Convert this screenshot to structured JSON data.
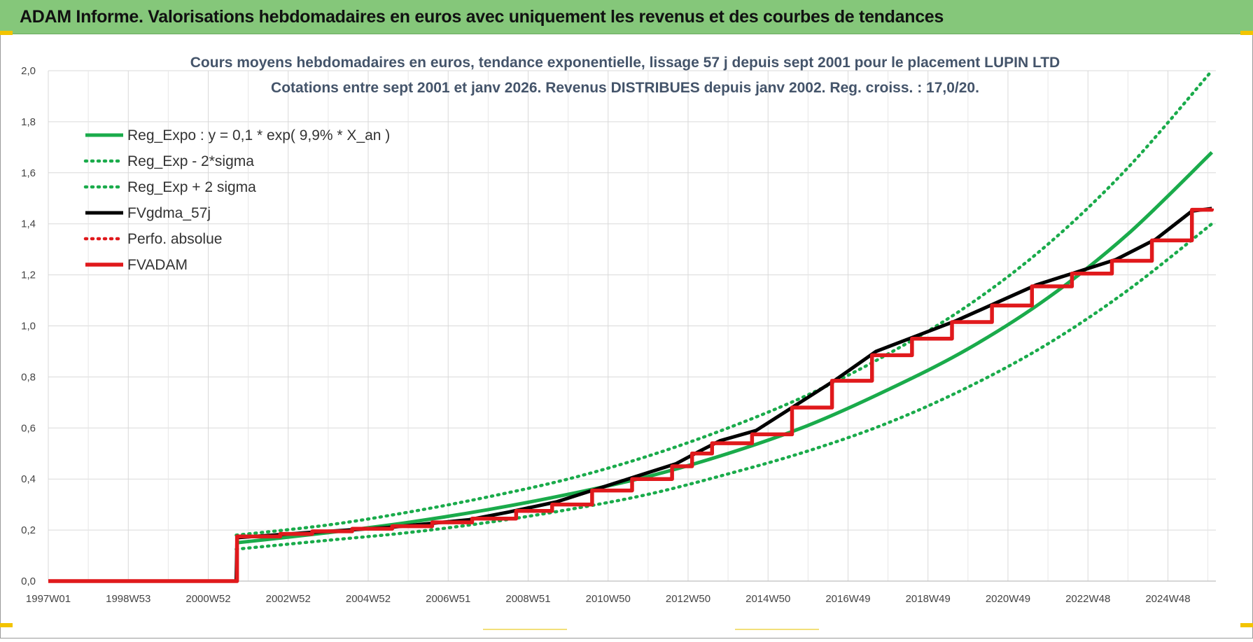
{
  "banner": {
    "title": "ADAM Informe. Valorisations hebdomadaires en euros avec uniquement les revenus et des courbes de tendances",
    "color": "#85c77a"
  },
  "chart_data": {
    "type": "line",
    "title": [
      "Cours moyens hebdomadaires en euros, tendance exponentielle, lissage 57 j depuis sept 2001 pour le placement LUPIN LTD",
      "Cotations entre sept 2001 et janv 2026. Revenus DISTRIBUES depuis janv 2002. Reg. croiss. : 17,0/20."
    ],
    "xlabel": "",
    "ylabel": "",
    "x_ticks": [
      "1997W01",
      "1998W53",
      "2000W52",
      "2002W52",
      "2004W52",
      "2006W51",
      "2008W51",
      "2010W50",
      "2012W50",
      "2014W50",
      "2016W49",
      "2018W49",
      "2020W49",
      "2022W48",
      "2024W48"
    ],
    "xlim": [
      1997.0,
      2026.2
    ],
    "ylim": [
      0,
      2.0
    ],
    "y_ticks": [
      "0,0",
      "0,2",
      "0,4",
      "0,6",
      "0,8",
      "1,0",
      "1,2",
      "1,4",
      "1,6",
      "1,8",
      "2,0"
    ],
    "grid": true,
    "legend_position": "top-left",
    "series": [
      {
        "name": "Reg_Expo : y = 0,1 * exp( 9,9% *  X_an )",
        "style": "solid",
        "color": "#1aab4b",
        "x": [
          2001.7,
          2004,
          2006,
          2008,
          2010,
          2012,
          2014,
          2016,
          2018,
          2020,
          2022,
          2024,
          2026.1
        ],
        "values": [
          0.15,
          0.19,
          0.23,
          0.28,
          0.34,
          0.41,
          0.5,
          0.61,
          0.75,
          0.91,
          1.11,
          1.36,
          1.68
        ]
      },
      {
        "name": "Reg_Exp - 2*sigma",
        "style": "dotted",
        "color": "#1aab4b",
        "x": [
          2001.7,
          2004,
          2006,
          2008,
          2010,
          2012,
          2014,
          2016,
          2018,
          2020,
          2022,
          2024,
          2026.1
        ],
        "values": [
          0.125,
          0.16,
          0.19,
          0.23,
          0.28,
          0.34,
          0.42,
          0.51,
          0.62,
          0.76,
          0.93,
          1.14,
          1.4
        ]
      },
      {
        "name": "Reg_Exp + 2 sigma",
        "style": "dotted",
        "color": "#1aab4b",
        "x": [
          2001.7,
          2004,
          2006,
          2008,
          2010,
          2012,
          2014,
          2016,
          2018,
          2020,
          2022,
          2024,
          2026.1
        ],
        "values": [
          0.18,
          0.22,
          0.27,
          0.33,
          0.4,
          0.49,
          0.6,
          0.73,
          0.89,
          1.08,
          1.32,
          1.62,
          2.0
        ]
      },
      {
        "name": "FVgdma_57j",
        "style": "solid",
        "color": "#000000",
        "x": [
          1997.0,
          2001.7,
          2001.72,
          2003.5,
          2005.5,
          2007.5,
          2008.5,
          2009.7,
          2010.7,
          2011.7,
          2012.7,
          2013.3,
          2013.8,
          2014.7,
          2015.7,
          2016.7,
          2017.7,
          2018.7,
          2019.7,
          2020.7,
          2021.7,
          2022.7,
          2023.7,
          2024.7,
          2025.6,
          2026.1
        ],
        "values": [
          0,
          0,
          0.17,
          0.19,
          0.21,
          0.24,
          0.27,
          0.31,
          0.36,
          0.41,
          0.46,
          0.51,
          0.55,
          0.59,
          0.69,
          0.79,
          0.9,
          0.96,
          1.02,
          1.09,
          1.16,
          1.21,
          1.26,
          1.34,
          1.45,
          1.46
        ]
      },
      {
        "name": "Perfo. absolue",
        "style": "dotted",
        "color": "#e0191c",
        "x": [],
        "values": []
      },
      {
        "name": "FVADAM",
        "style": "step",
        "color": "#e0191c",
        "x": [
          1997.0,
          2001.7,
          2001.72,
          2002.8,
          2003.6,
          2004.6,
          2005.6,
          2006.6,
          2007.6,
          2008.7,
          2009.6,
          2010.6,
          2011.6,
          2012.6,
          2013.1,
          2013.6,
          2014.6,
          2015.6,
          2016.6,
          2017.6,
          2018.6,
          2019.6,
          2020.6,
          2021.6,
          2022.6,
          2023.6,
          2024.6,
          2025.6,
          2026.1
        ],
        "values": [
          0,
          0,
          0.175,
          0.185,
          0.195,
          0.205,
          0.215,
          0.23,
          0.245,
          0.275,
          0.3,
          0.355,
          0.4,
          0.45,
          0.5,
          0.54,
          0.575,
          0.68,
          0.785,
          0.885,
          0.95,
          1.015,
          1.08,
          1.155,
          1.205,
          1.255,
          1.335,
          1.455,
          1.46
        ]
      }
    ]
  }
}
